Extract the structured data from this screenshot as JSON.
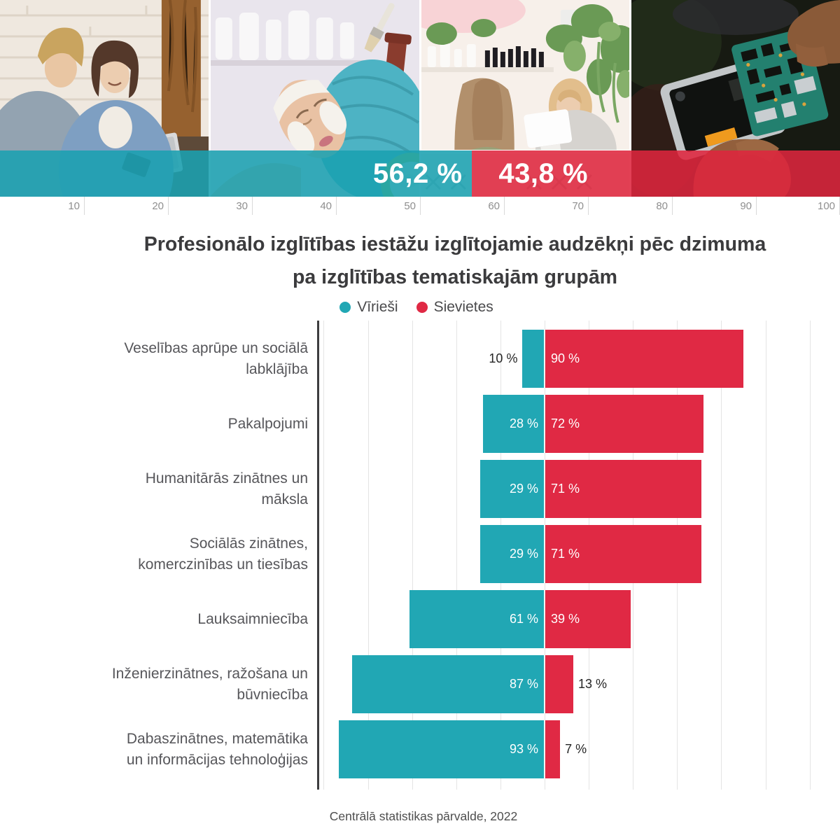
{
  "top_banner": {
    "photos": [
      "office-teamwork-photo",
      "facial-treatment-photo",
      "salon-counter-photo",
      "electronics-repair-photo"
    ],
    "male_share_label": "56,2 %",
    "female_share_label": "43,8 %",
    "male_share_pct": 56.2,
    "female_share_pct": 43.8,
    "axis_ticks": [
      "10",
      "20",
      "30",
      "40",
      "50",
      "60",
      "70",
      "80",
      "90",
      "100"
    ]
  },
  "title": {
    "line1": "Profesionālo izglītības iestāžu izglītojamie audzēkņi pēc dzimuma",
    "line2": "pa izglītības tematiskajām grupām"
  },
  "legend": [
    {
      "label": "Vīrieši",
      "color": "#21a7b4"
    },
    {
      "label": "Sievietes",
      "color": "#e02944"
    }
  ],
  "colors": {
    "male": "#21a7b4",
    "female": "#e02944",
    "grid": "#e4e4e4",
    "axis": "#3d3d3f"
  },
  "chart_data": {
    "type": "bar",
    "variant": "diverging-horizontal",
    "title": "Profesionālo izglītības iestāžu izglītojamie audzēkņi pēc dzimuma pa izglītības tematiskajām grupām",
    "legend_position": "top",
    "grid": true,
    "value_suffix": " %",
    "overall_split": {
      "Vīrieši": 56.2,
      "Sievietes": 43.8
    },
    "top_scale_ticks": [
      10,
      20,
      30,
      40,
      50,
      60,
      70,
      80,
      90,
      100
    ],
    "categories": [
      "Veselības aprūpe un sociālā labklājība",
      "Pakalpojumi",
      "Humanitārās zinātnes un māksla",
      "Sociālās zinātnes, komerczinības un tiesības",
      "Lauksaimniecība",
      "Inženierzinātnes, ražošana un būvniecība",
      "Dabaszinātnes, matemātika un informācijas tehnoloģijas"
    ],
    "category_labels": [
      "Veselības aprūpe un sociālā\nlabklājība",
      "Pakalpojumi",
      "Humanitārās zinātnes un\nmāksla",
      "Sociālās zinātnes,\nkomerczinības un tiesības",
      "Lauksaimniecība",
      "Inženierzinātnes, ražošana un\nbūvniecība",
      "Dabaszinātnes, matemātika\nun informācijas tehnoloģijas"
    ],
    "series": [
      {
        "name": "Vīrieši",
        "color": "#21a7b4",
        "values": [
          10,
          28,
          29,
          29,
          61,
          87,
          93
        ]
      },
      {
        "name": "Sievietes",
        "color": "#e02944",
        "values": [
          90,
          72,
          71,
          71,
          39,
          13,
          7
        ]
      }
    ]
  },
  "footer": {
    "source": "Centrālā statistikas pārvalde, 2022"
  }
}
